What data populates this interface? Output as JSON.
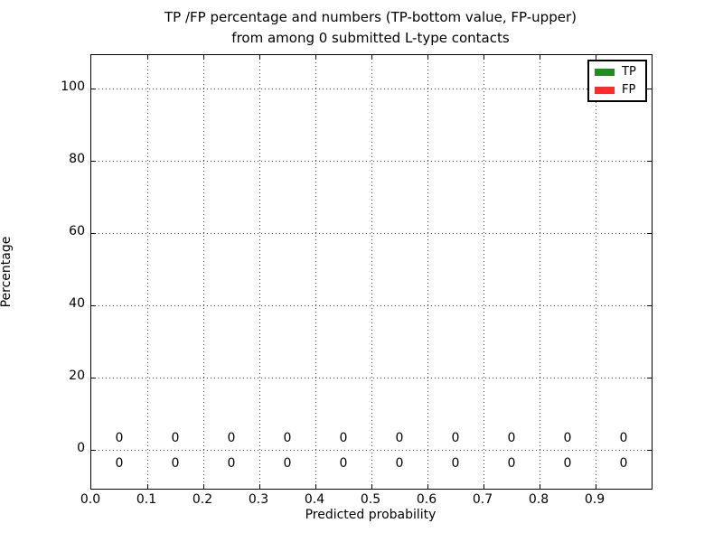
{
  "chart_data": {
    "type": "bar",
    "title_line1": "TP /FP percentage and numbers (TP-bottom value, FP-upper)",
    "title_line2": "from among 0 submitted L-type contacts",
    "xlabel": "Predicted probability",
    "ylabel": "Percentage",
    "xlim": [
      0.0,
      1.0
    ],
    "ylim": [
      -11,
      109
    ],
    "x_tick_labels": [
      "0.0",
      "0.1",
      "0.2",
      "0.3",
      "0.4",
      "0.5",
      "0.6",
      "0.7",
      "0.8",
      "0.9"
    ],
    "x_tick_values": [
      0.0,
      0.1,
      0.2,
      0.3,
      0.4,
      0.5,
      0.6,
      0.7,
      0.8,
      0.9
    ],
    "y_tick_labels": [
      "0",
      "20",
      "40",
      "60",
      "80",
      "100"
    ],
    "y_tick_values": [
      0,
      20,
      40,
      60,
      80,
      100
    ],
    "grid": "dotted",
    "bin_centers": [
      0.05,
      0.15,
      0.25,
      0.35,
      0.45,
      0.55,
      0.65,
      0.75,
      0.85,
      0.95
    ],
    "series": [
      {
        "name": "TP",
        "values": [
          0,
          0,
          0,
          0,
          0,
          0,
          0,
          0,
          0,
          0
        ],
        "color": "#228b22",
        "label_row": "bottom"
      },
      {
        "name": "FP",
        "values": [
          0,
          0,
          0,
          0,
          0,
          0,
          0,
          0,
          0,
          0
        ],
        "color": "#ff2b2b",
        "label_row": "upper"
      }
    ],
    "legend": {
      "position": "upper-right",
      "entries": [
        {
          "label": "TP",
          "color": "#228b22"
        },
        {
          "label": "FP",
          "color": "#ff2b2b"
        }
      ]
    }
  }
}
